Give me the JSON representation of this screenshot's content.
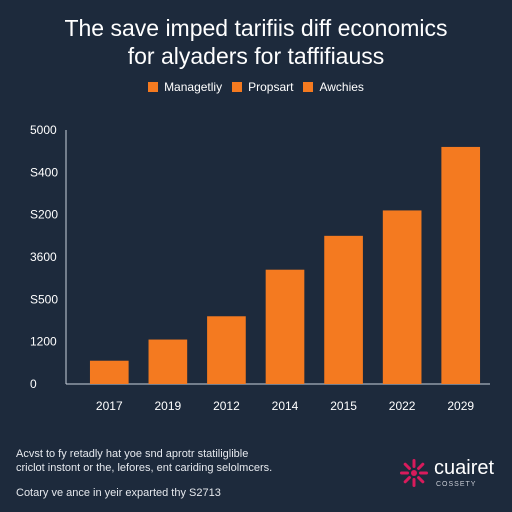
{
  "chart_data": {
    "type": "bar",
    "title_line1": "The save imped tarifiis diff economics",
    "title_line2": "for alyaders for taffifiauss",
    "legend": [
      {
        "label": "Managetliy",
        "color": "#f47a20"
      },
      {
        "label": "Propsart",
        "color": "#f47a20"
      },
      {
        "label": "Awchies",
        "color": "#f47a20"
      }
    ],
    "categories": [
      "2017",
      "2019",
      "2012",
      "2014",
      "2015",
      "2022",
      "2029"
    ],
    "values": [
      0.55,
      1.05,
      1.6,
      2.7,
      3.5,
      4.1,
      5.6
    ],
    "y_tick_labels": [
      "0",
      "1200",
      "S500",
      "3600",
      "S200",
      "S400",
      "5000"
    ],
    "ylim": [
      0,
      6
    ],
    "bar_color": "#f47a20",
    "grid": false
  },
  "footer": {
    "note_line1": "Acvst to fy retadly hat yoe snd aprotr statiliglible",
    "note_line2": "criclot instont or the, lefores, ent cariding selolmcers.",
    "note_line3": "Cotary ve ance in yeir exparted thy S2713",
    "brand_name": "cuairet",
    "brand_sub": "COSSETY"
  },
  "colors": {
    "background": "#1d2a3c",
    "accent": "#f47a20",
    "brand_mark": "#d81b5c"
  }
}
